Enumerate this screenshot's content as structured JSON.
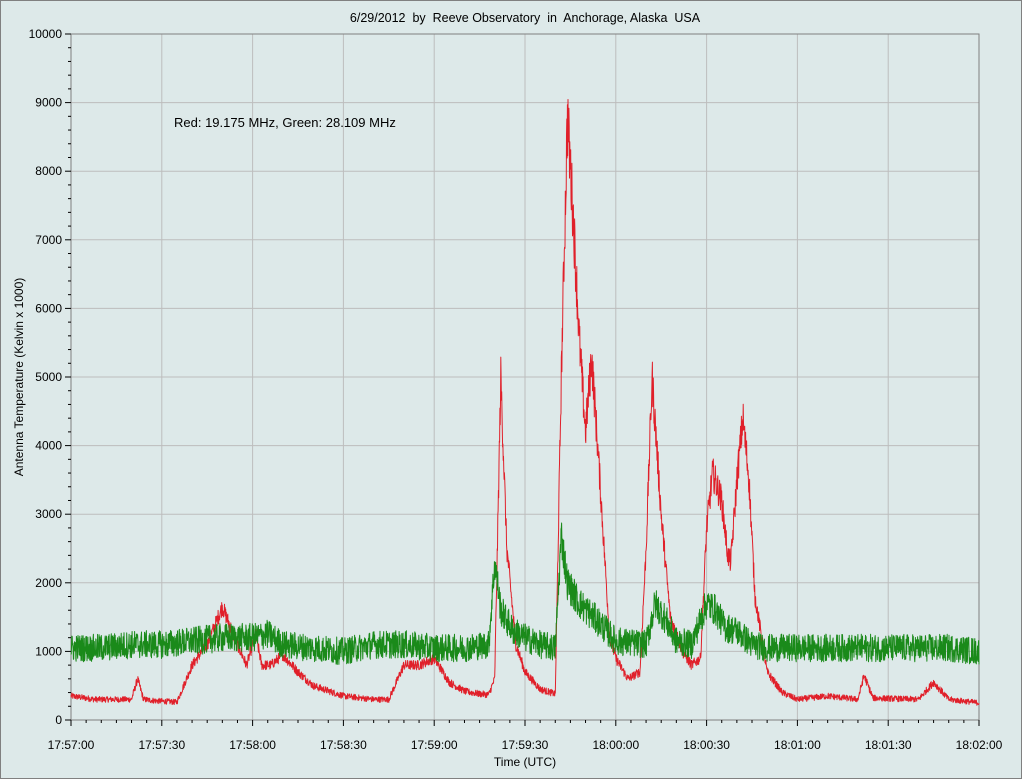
{
  "chart_data": {
    "type": "line",
    "title": "6/29/2012  by  Reeve Observatory  in  Anchorage, Alaska  USA",
    "xlabel": "Time (UTC)",
    "ylabel": "Antenna Temperature (Kelvin x 1000)",
    "annotation": "Red: 19.175 MHz, Green: 28.109 MHz",
    "xlim": [
      "17:57:00",
      "18:02:00"
    ],
    "ylim": [
      0,
      10000
    ],
    "grid": true,
    "x_tick_labels": [
      "17:57:00",
      "17:57:30",
      "17:58:00",
      "17:58:30",
      "17:59:00",
      "17:59:30",
      "18:00:00",
      "18:00:30",
      "18:01:00",
      "18:01:30",
      "18:02:00"
    ],
    "y_tick_labels": [
      "0",
      "1000",
      "2000",
      "3000",
      "4000",
      "5000",
      "6000",
      "7000",
      "8000",
      "9000",
      "10000"
    ],
    "colors": {
      "red": "#e0202a",
      "green": "#1a8a1a",
      "grid": "#bdbdbd",
      "background": "#dde9e9"
    },
    "series": [
      {
        "color": "red",
        "x": [
          "17:57:00",
          "17:57:08",
          "17:57:10",
          "17:57:20",
          "17:57:22",
          "17:57:24",
          "17:57:28",
          "17:57:35",
          "17:57:40",
          "17:57:45",
          "17:57:50",
          "17:57:55",
          "17:57:58",
          "17:58:01",
          "17:58:03",
          "17:58:06",
          "17:58:10",
          "17:58:15",
          "17:58:20",
          "17:58:30",
          "17:58:40",
          "17:58:45",
          "17:58:50",
          "17:58:55",
          "17:59:00",
          "17:59:05",
          "17:59:10",
          "17:59:15",
          "17:59:18",
          "17:59:20",
          "17:59:22",
          "17:59:24",
          "17:59:27",
          "17:59:30",
          "17:59:35",
          "17:59:40",
          "17:59:42",
          "17:59:44",
          "17:59:46",
          "17:59:48",
          "17:59:50",
          "17:59:52",
          "17:59:54",
          "17:59:56",
          "17:59:58",
          "18:00:00",
          "18:00:04",
          "18:00:08",
          "18:00:10",
          "18:00:12",
          "18:00:15",
          "18:00:18",
          "18:00:22",
          "18:00:25",
          "18:00:28",
          "18:00:30",
          "18:00:32",
          "18:00:35",
          "18:00:37",
          "18:00:38",
          "18:00:40",
          "18:00:42",
          "18:00:44",
          "18:00:46",
          "18:00:50",
          "18:00:55",
          "18:01:00",
          "18:01:10",
          "18:01:20",
          "18:01:22",
          "18:01:25",
          "18:01:40",
          "18:01:45",
          "18:01:50",
          "18:02:00"
        ],
        "y": [
          350,
          300,
          300,
          300,
          600,
          300,
          280,
          260,
          800,
          1100,
          1650,
          1100,
          800,
          1250,
          800,
          800,
          950,
          700,
          500,
          350,
          300,
          300,
          800,
          800,
          900,
          550,
          420,
          380,
          370,
          600,
          5000,
          2500,
          1100,
          700,
          450,
          380,
          5000,
          8800,
          7300,
          5500,
          4200,
          5300,
          4000,
          2600,
          1200,
          900,
          600,
          700,
          2500,
          5000,
          3000,
          1500,
          1000,
          800,
          900,
          2800,
          3600,
          3200,
          2400,
          2300,
          3500,
          4400,
          3500,
          1800,
          700,
          400,
          300,
          350,
          300,
          650,
          320,
          300,
          550,
          300,
          250
        ]
      },
      {
        "color": "green",
        "x": [
          "17:57:00",
          "17:57:10",
          "17:57:20",
          "17:57:30",
          "17:57:40",
          "17:57:50",
          "17:58:00",
          "17:58:05",
          "17:58:10",
          "17:58:20",
          "17:58:30",
          "17:58:40",
          "17:58:50",
          "17:59:00",
          "17:59:10",
          "17:59:18",
          "17:59:20",
          "17:59:22",
          "17:59:26",
          "17:59:30",
          "17:59:35",
          "17:59:40",
          "17:59:42",
          "17:59:44",
          "17:59:48",
          "17:59:55",
          "18:00:00",
          "18:00:10",
          "18:00:13",
          "18:00:16",
          "18:00:20",
          "18:00:25",
          "18:00:30",
          "18:00:33",
          "18:00:36",
          "18:00:40",
          "18:00:45",
          "18:00:50",
          "18:01:00",
          "18:01:10",
          "18:01:20",
          "18:01:30",
          "18:01:40",
          "18:01:50",
          "18:02:00"
        ],
        "y": [
          1050,
          1050,
          1100,
          1100,
          1150,
          1200,
          1200,
          1250,
          1100,
          1050,
          1000,
          1100,
          1100,
          1050,
          1050,
          1100,
          2300,
          1600,
          1300,
          1200,
          1100,
          1050,
          2700,
          2000,
          1700,
          1400,
          1150,
          1100,
          1700,
          1500,
          1150,
          1100,
          1700,
          1600,
          1350,
          1300,
          1100,
          1050,
          1050,
          1050,
          1050,
          1050,
          1050,
          1050,
          1000
        ]
      }
    ]
  }
}
